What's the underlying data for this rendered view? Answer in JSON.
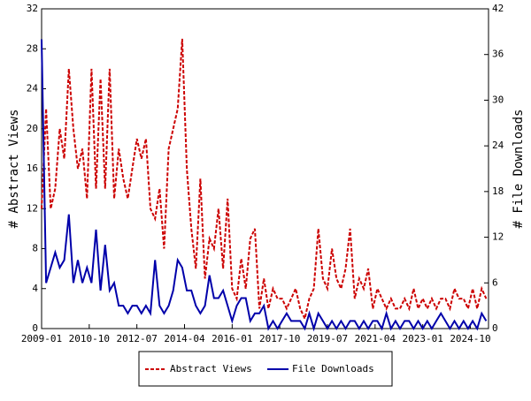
{
  "chart_data": {
    "type": "line",
    "x": [
      "2009-01",
      "2009-03",
      "2009-05",
      "2009-07",
      "2009-09",
      "2009-11",
      "2010-01",
      "2010-03",
      "2010-05",
      "2010-07",
      "2010-09",
      "2010-11",
      "2011-01",
      "2011-03",
      "2011-05",
      "2011-07",
      "2011-09",
      "2011-11",
      "2012-01",
      "2012-03",
      "2012-05",
      "2012-07",
      "2012-09",
      "2012-11",
      "2013-01",
      "2013-03",
      "2013-05",
      "2013-07",
      "2013-09",
      "2013-11",
      "2014-01",
      "2014-03",
      "2014-05",
      "2014-07",
      "2014-09",
      "2014-11",
      "2015-01",
      "2015-03",
      "2015-05",
      "2015-07",
      "2015-09",
      "2015-11",
      "2016-01",
      "2016-03",
      "2016-05",
      "2016-07",
      "2016-09",
      "2016-11",
      "2017-01",
      "2017-03",
      "2017-05",
      "2017-07",
      "2017-09",
      "2017-11",
      "2018-01",
      "2018-03",
      "2018-05",
      "2018-07",
      "2018-09",
      "2018-11",
      "2019-01",
      "2019-03",
      "2019-05",
      "2019-07",
      "2019-09",
      "2019-11",
      "2020-01",
      "2020-03",
      "2020-05",
      "2020-07",
      "2020-09",
      "2020-11",
      "2021-01",
      "2021-03",
      "2021-05",
      "2021-07",
      "2021-09",
      "2021-11",
      "2022-01",
      "2022-03",
      "2022-05",
      "2022-07",
      "2022-09",
      "2022-11",
      "2023-01",
      "2023-03",
      "2023-05",
      "2023-07",
      "2023-09",
      "2023-11",
      "2024-01",
      "2024-03",
      "2024-05",
      "2024-07",
      "2024-09",
      "2024-11",
      "2025-01",
      "2025-03",
      "2025-05"
    ],
    "series": [
      {
        "name": "Abstract Views",
        "color": "#cc0000",
        "dash": true,
        "values": [
          12,
          22,
          12,
          14,
          20,
          17,
          26,
          20,
          16,
          18,
          13,
          26,
          14,
          25,
          14,
          26,
          13,
          18,
          15,
          13,
          16,
          19,
          17,
          19,
          12,
          11,
          14,
          8,
          18,
          20,
          22,
          29,
          16,
          10,
          6,
          15,
          5,
          9,
          8,
          12,
          6,
          13,
          4,
          3,
          7,
          4,
          9,
          10,
          2,
          5,
          2,
          4,
          3,
          3,
          2,
          3,
          4,
          2,
          1,
          3,
          4,
          10,
          5,
          4,
          8,
          5,
          4,
          6,
          10,
          3,
          5,
          4,
          6,
          2,
          4,
          3,
          2,
          3,
          2,
          2,
          3,
          2,
          4,
          2,
          3,
          2,
          3,
          2,
          3,
          3,
          2,
          4,
          3,
          3,
          2,
          4,
          2,
          4,
          3
        ]
      },
      {
        "name": "File Downloads",
        "color": "#0000aa",
        "axis": "y2",
        "values": [
          38,
          6,
          8,
          10,
          8,
          9,
          15,
          6,
          9,
          6,
          8,
          6,
          13,
          5,
          11,
          5,
          6,
          3,
          3,
          2,
          3,
          3,
          2,
          3,
          2,
          9,
          3,
          2,
          3,
          5,
          9,
          8,
          5,
          5,
          3,
          2,
          3,
          7,
          4,
          4,
          5,
          3,
          1,
          3,
          4,
          4,
          1,
          2,
          2,
          3,
          0,
          1,
          0,
          1,
          2,
          1,
          1,
          1,
          0,
          2,
          0,
          2,
          1,
          0,
          1,
          0,
          1,
          0,
          1,
          1,
          0,
          1,
          0,
          1,
          1,
          0,
          2,
          0,
          1,
          0,
          1,
          1,
          0,
          1,
          0,
          1,
          0,
          1,
          2,
          1,
          0,
          1,
          0,
          1,
          0,
          1,
          0,
          2,
          1
        ]
      }
    ],
    "xlim": [
      "2009-01",
      "2025-06"
    ],
    "xticks": [
      "2009-01",
      "2010-10",
      "2012-07",
      "2014-04",
      "2016-01",
      "2017-10",
      "2019-07",
      "2021-04",
      "2023-01",
      "2024-10"
    ],
    "ylim": [
      0,
      32
    ],
    "yticks": [
      0,
      4,
      8,
      12,
      16,
      20,
      24,
      28,
      32
    ],
    "y2lim": [
      0,
      42
    ],
    "y2ticks": [
      0,
      6,
      12,
      18,
      24,
      30,
      36,
      42
    ],
    "ylabel": "# Abstract Views",
    "y2label": "# File Downloads"
  }
}
